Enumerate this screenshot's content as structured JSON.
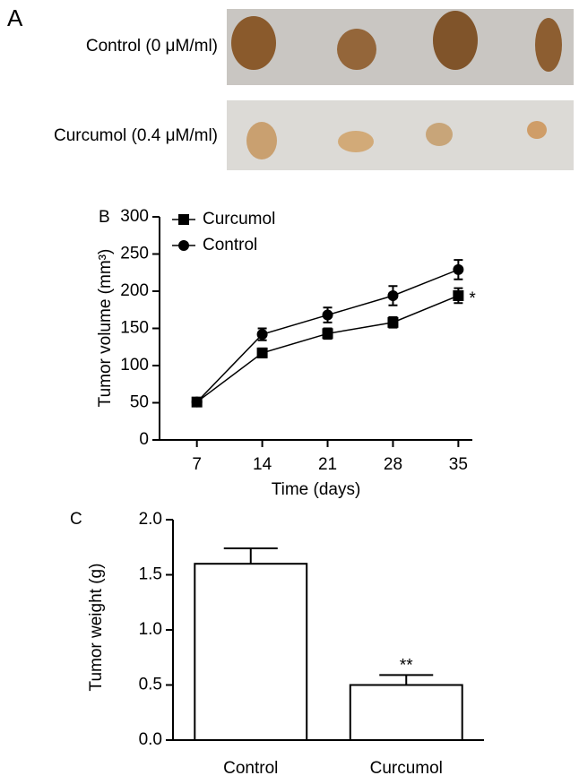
{
  "panel_a": {
    "panel_label": "A",
    "rows": [
      "Control (0 μM/ml)",
      "Curcumol (0.4 μM/ml)"
    ]
  },
  "chart_data": [
    {
      "type": "line",
      "panel_label": "B",
      "y_label": "Tumor volume (mm³)",
      "x_label": "Time (days)",
      "x": [
        7,
        14,
        21,
        28,
        35
      ],
      "xlim": [
        3,
        36.5
      ],
      "xticks": [
        7,
        14,
        21,
        28,
        35
      ],
      "ylim": [
        0,
        300
      ],
      "yticks": [
        0,
        50,
        100,
        150,
        200,
        250,
        300
      ],
      "series": [
        {
          "name": "Curcumol",
          "color": "#000000",
          "marker": "square",
          "values": [
            51,
            117,
            143,
            158,
            194
          ],
          "error": [
            3,
            6,
            7,
            7,
            10
          ]
        },
        {
          "name": "Control",
          "color": "#000000",
          "marker": "circle",
          "values": [
            51,
            142,
            168,
            194,
            229
          ],
          "error": [
            3,
            8,
            10,
            13,
            13
          ]
        }
      ],
      "legend": "upper left",
      "annotations": [
        {
          "text": "*"
        }
      ]
    },
    {
      "type": "bar",
      "panel_label": "C",
      "y_label": "Tumor weight (g)",
      "categories": [
        "Control",
        "Curcumol"
      ],
      "values": [
        1.6,
        0.5
      ],
      "error": [
        0.14,
        0.09
      ],
      "color": "#ffffff",
      "ylim": [
        0,
        2
      ],
      "yticks": [
        {
          "value": 0,
          "label": "0.0"
        },
        {
          "value": 0.5,
          "label": "0.5"
        },
        {
          "value": 1,
          "label": "1.0"
        },
        {
          "value": 1.5,
          "label": "1.5"
        },
        {
          "value": 2,
          "label": "2.0"
        }
      ],
      "annotations": [
        {
          "text": "**"
        }
      ]
    }
  ]
}
